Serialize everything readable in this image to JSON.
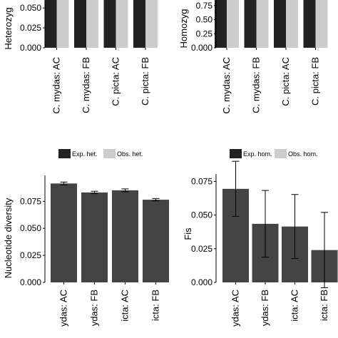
{
  "colors": {
    "dark": "#222222",
    "light": "#cccccc",
    "single": "#444444",
    "axis": "#000000"
  },
  "chart_data": [
    {
      "id": "het",
      "type": "bar",
      "ylabel": "Heterozyg",
      "categories": [
        "C. mydas: AC",
        "C. mydas: FB",
        "C. picta: AC",
        "C. picta: FB"
      ],
      "y_ticks": [
        "0.000",
        "0.025",
        "0.050"
      ],
      "ylim": [
        0,
        0.06
      ],
      "series": [
        {
          "name": "Exp. het.",
          "values": [
            0.06,
            0.06,
            0.06,
            0.06
          ]
        },
        {
          "name": "Obs. het.",
          "values": [
            0.06,
            0.06,
            0.06,
            0.06
          ]
        }
      ],
      "legend": [
        "Exp. het.",
        "Obs. het."
      ]
    },
    {
      "id": "hom",
      "type": "bar",
      "ylabel": "Homozyg",
      "categories": [
        "C. mydas: AC",
        "C. mydas: FB",
        "C. picta: AC",
        "C. picta: FB"
      ],
      "y_ticks": [
        "0.000",
        "0.25",
        "0.50",
        "0.75"
      ],
      "ylim": [
        0,
        0.85
      ],
      "series": [
        {
          "name": "Exp. hom.",
          "values": [
            0.85,
            0.85,
            0.85,
            0.85
          ]
        },
        {
          "name": "Obs. hom.",
          "values": [
            0.85,
            0.85,
            0.85,
            0.85
          ]
        }
      ],
      "legend": [
        "Exp. hom.",
        "Obs. hom."
      ]
    },
    {
      "id": "nd",
      "type": "bar",
      "ylabel": "Nucleotide diversity",
      "categories": [
        "C. mydas: AC",
        "C. mydas: FB",
        "C. picta: AC",
        "C. picta: FB"
      ],
      "categories_shown": [
        "ydas: AC",
        "ydas: FB",
        "icta: AC",
        "icta: FB"
      ],
      "y_ticks": [
        "0.000",
        "0.025",
        "0.050",
        "0.075"
      ],
      "ylim": [
        0,
        0.095
      ],
      "values": [
        0.0915,
        0.0832,
        0.0852,
        0.0765
      ],
      "errors": [
        0.0013,
        0.0011,
        0.0013,
        0.0011
      ]
    },
    {
      "id": "fis",
      "type": "bar",
      "ylabel": "Fis",
      "categories": [
        "C. mydas: AC",
        "C. mydas: FB",
        "C. picta: AC",
        "C. picta: FB"
      ],
      "categories_shown": [
        "ydas: AC",
        "ydas: FB",
        "icta: AC",
        "icta: FB"
      ],
      "y_ticks": [
        "0.000",
        "0.025",
        "0.050",
        "0.075"
      ],
      "ylim": [
        0,
        0.08
      ],
      "values": [
        0.0695,
        0.0435,
        0.0415,
        0.024
      ],
      "errors": [
        0.0205,
        0.0248,
        0.0238,
        0.028
      ]
    }
  ]
}
